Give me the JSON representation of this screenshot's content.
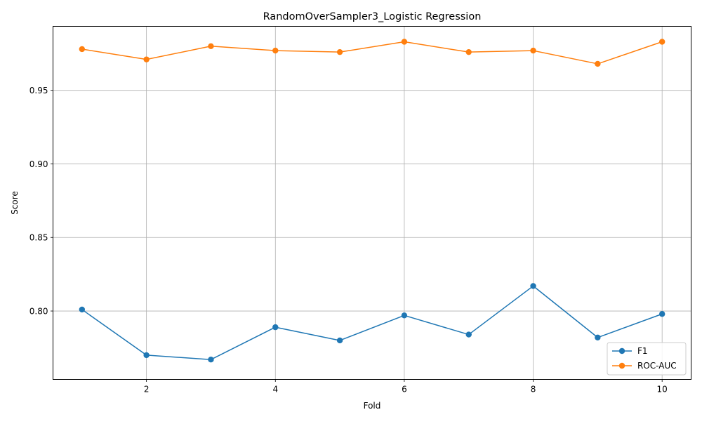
{
  "chart_data": {
    "type": "line",
    "title": "RandomOverSampler3_Logistic Regression",
    "xlabel": "Fold",
    "ylabel": "Score",
    "x": [
      1,
      2,
      3,
      4,
      5,
      6,
      7,
      8,
      9,
      10
    ],
    "xlim": [
      0.55,
      10.45
    ],
    "ylim": [
      0.7535,
      0.9935
    ],
    "xticks": [
      2,
      4,
      6,
      8,
      10
    ],
    "xtick_labels": [
      "2",
      "4",
      "6",
      "8",
      "10"
    ],
    "yticks": [
      0.8,
      0.85,
      0.9,
      0.95
    ],
    "ytick_labels": [
      "0.80",
      "0.85",
      "0.90",
      "0.95"
    ],
    "grid": true,
    "legend_position": "lower-right",
    "series": [
      {
        "name": "F1",
        "color": "#1f77b4",
        "marker": "circle",
        "values": [
          0.801,
          0.77,
          0.767,
          0.789,
          0.78,
          0.797,
          0.784,
          0.817,
          0.782,
          0.798
        ]
      },
      {
        "name": "ROC-AUC",
        "color": "#ff7f0e",
        "marker": "circle",
        "values": [
          0.978,
          0.971,
          0.98,
          0.977,
          0.976,
          0.983,
          0.976,
          0.977,
          0.968,
          0.983
        ]
      }
    ]
  }
}
